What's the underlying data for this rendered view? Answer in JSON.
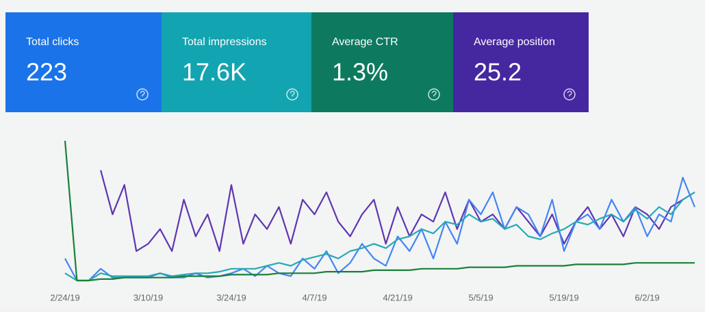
{
  "cards": [
    {
      "label": "Total clicks",
      "value": "223",
      "color": "#1a73e8"
    },
    {
      "label": "Total impressions",
      "value": "17.6K",
      "color": "#12a4b0"
    },
    {
      "label": "Average CTR",
      "value": "1.3%",
      "color": "#0d7a5f"
    },
    {
      "label": "Average position",
      "value": "25.2",
      "color": "#4527a0"
    }
  ],
  "chart_data": {
    "type": "line",
    "categories": [
      "2/24/19",
      null,
      null,
      null,
      null,
      null,
      null,
      "3/10/19",
      null,
      null,
      null,
      null,
      null,
      null,
      "3/24/19",
      null,
      null,
      null,
      null,
      null,
      null,
      "4/7/19",
      null,
      null,
      null,
      null,
      null,
      null,
      "4/21/19",
      null,
      null,
      null,
      null,
      null,
      null,
      "5/5/19",
      null,
      null,
      null,
      null,
      null,
      null,
      "5/19/19",
      null,
      null,
      null,
      null,
      null,
      null,
      "6/2/19",
      null,
      null,
      null,
      null
    ],
    "ylim": [
      0,
      100
    ],
    "series": [
      {
        "color": "#5e35b1",
        "values": [
          null,
          null,
          null,
          75,
          45,
          65,
          20,
          25,
          35,
          20,
          55,
          30,
          45,
          20,
          65,
          25,
          45,
          35,
          50,
          25,
          55,
          45,
          60,
          40,
          30,
          45,
          55,
          25,
          50,
          30,
          45,
          40,
          60,
          35,
          55,
          40,
          45,
          35,
          50,
          40,
          30,
          45,
          25,
          40,
          50,
          35,
          45,
          30,
          50,
          45,
          35,
          50,
          55,
          60
        ]
      },
      {
        "color": "#4285f4",
        "values": [
          15,
          0,
          0,
          8,
          2,
          2,
          2,
          2,
          5,
          2,
          2,
          5,
          2,
          3,
          5,
          8,
          3,
          10,
          5,
          3,
          15,
          8,
          20,
          5,
          12,
          25,
          15,
          10,
          30,
          20,
          35,
          15,
          40,
          25,
          55,
          45,
          60,
          35,
          50,
          45,
          30,
          55,
          20,
          40,
          45,
          35,
          55,
          40,
          50,
          30,
          45,
          40,
          70,
          50
        ]
      },
      {
        "color": "#26a9b5",
        "values": [
          5,
          0,
          0,
          5,
          3,
          3,
          3,
          3,
          5,
          3,
          4,
          5,
          5,
          6,
          8,
          8,
          8,
          10,
          12,
          10,
          14,
          16,
          18,
          15,
          20,
          22,
          25,
          22,
          28,
          30,
          35,
          32,
          40,
          38,
          45,
          40,
          42,
          35,
          38,
          30,
          28,
          32,
          35,
          40,
          38,
          42,
          45,
          40,
          48,
          42,
          50,
          45,
          55,
          60
        ]
      },
      {
        "color": "#188038",
        "values": [
          95,
          0,
          0,
          1,
          1,
          2,
          2,
          2,
          2,
          2,
          3,
          3,
          3,
          3,
          4,
          4,
          4,
          4,
          5,
          5,
          5,
          5,
          6,
          6,
          6,
          6,
          7,
          7,
          7,
          7,
          8,
          8,
          8,
          8,
          9,
          9,
          9,
          9,
          10,
          10,
          10,
          10,
          10,
          11,
          11,
          11,
          11,
          11,
          12,
          12,
          12,
          12,
          12,
          12
        ]
      }
    ]
  }
}
